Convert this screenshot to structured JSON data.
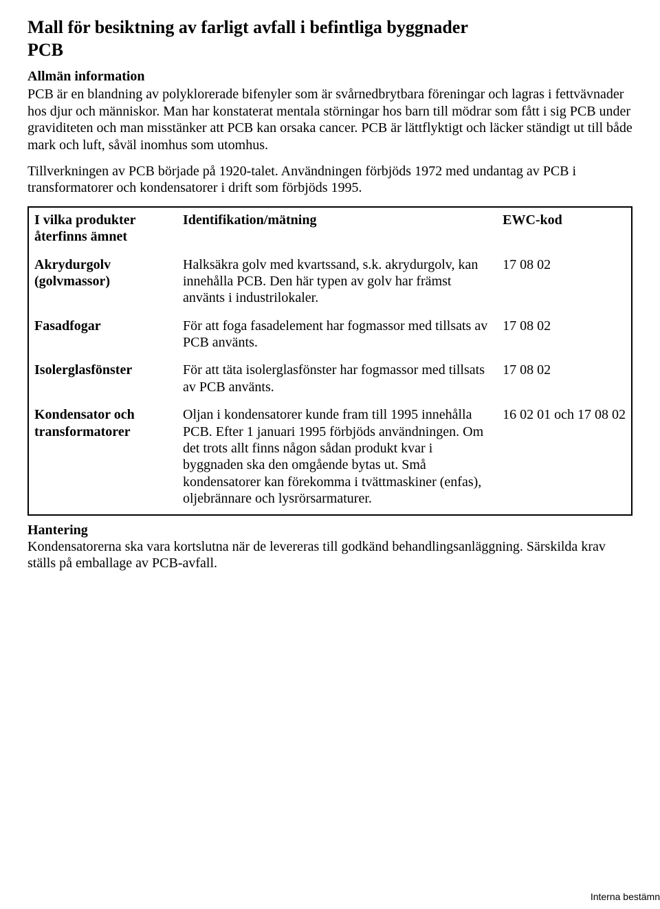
{
  "title": "Mall för besiktning av farligt avfall i befintliga byggnader",
  "subtitle": "PCB",
  "allman_header": "Allmän information",
  "paragraphs": {
    "p1": "PCB är en blandning av polyklorerade bifenyler som är svårnedbrytbara föreningar och lagras i fettvävnader hos djur och människor. Man har konstaterat mentala störningar hos barn till mödrar som fått i sig PCB under graviditeten och man misstänker att PCB kan orsaka cancer. PCB är lättflyktigt och läcker ständigt ut till både mark och luft, såväl inomhus som utomhus.",
    "p2": "Tillverkningen av PCB började på 1920-talet. Användningen förbjöds 1972 med undantag av PCB i transformatorer och kondensatorer i drift som förbjöds 1995."
  },
  "table": {
    "header": {
      "col1": "I vilka produkter återfinns ämnet",
      "col2": "Identifikation/mätning",
      "col3": "EWC-kod"
    },
    "rows": [
      {
        "product": "Akrydurgolv (golvmassor)",
        "desc": "Halksäkra golv med kvartssand, s.k. akrydurgolv, kan innehålla PCB. Den här typen av golv har främst använts i industrilokaler.",
        "code": "17 08 02"
      },
      {
        "product": "Fasadfogar",
        "desc": "För att foga fasadelement har fogmassor med tillsats av PCB använts.",
        "code": "17 08 02"
      },
      {
        "product": "Isolerglasfönster",
        "desc": "För att täta isolerglasfönster har fogmassor med tillsats av PCB använts.",
        "code": "17 08 02"
      },
      {
        "product": "Kondensator och transformatorer",
        "desc": "Oljan i kondensatorer kunde fram till 1995 innehålla PCB. Efter 1 januari 1995 förbjöds användningen. Om det trots allt finns någon sådan produkt kvar i byggnaden ska den omgående bytas ut. Små kondensatorer kan förekomma i tvättmaskiner (enfas), oljebrännare och lysrörsarmaturer.",
        "code": "16 02 01 och 17 08 02"
      }
    ]
  },
  "hantering": {
    "header": "Hantering",
    "body": "Kondensatorerna ska vara kortslutna när de levereras till godkänd behandlingsanläggning. Särskilda krav ställs på emballage av PCB-avfall."
  },
  "footer": "Interna bestämn"
}
